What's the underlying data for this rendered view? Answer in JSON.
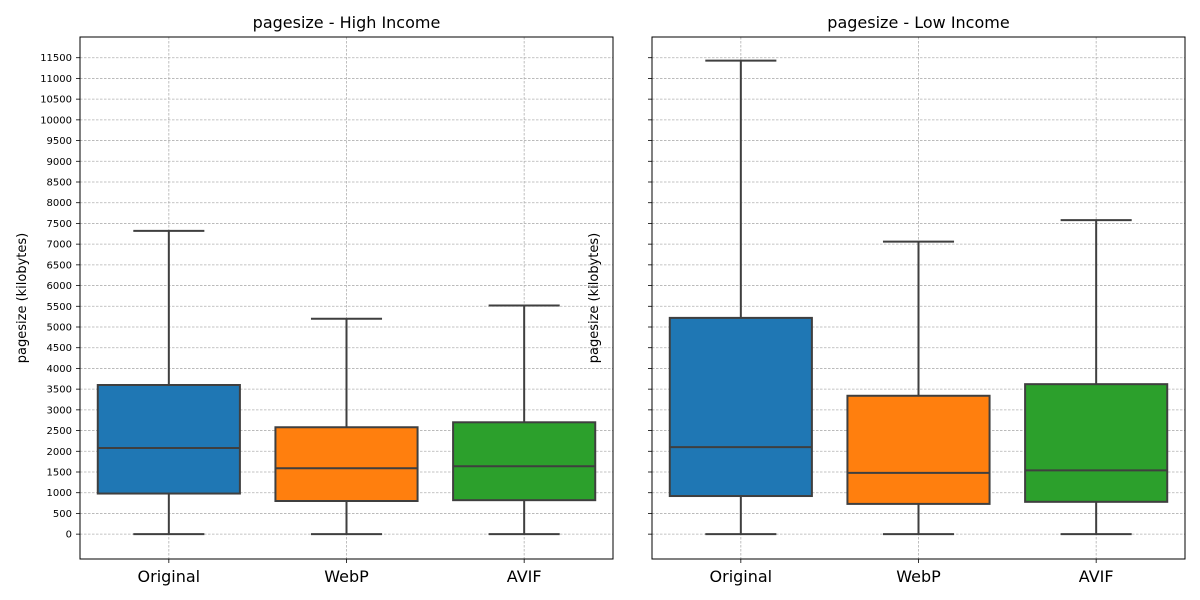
{
  "chart_data": [
    {
      "type": "box",
      "title": "pagesize - High Income",
      "ylabel": "pagesize (kilobytes)",
      "xlabel": "",
      "categories": [
        "Original",
        "WebP",
        "AVIF"
      ],
      "ylim": [
        -600,
        12000
      ],
      "y_ticks": [
        "0",
        "500",
        "1000",
        "1500",
        "2000",
        "2500",
        "3000",
        "3500",
        "4000",
        "4500",
        "5000",
        "5500",
        "6000",
        "6500",
        "7000",
        "7500",
        "8000",
        "8500",
        "9000",
        "9500",
        "10000",
        "10500",
        "11000",
        "11500"
      ],
      "y_tick_values": [
        0,
        500,
        1000,
        1500,
        2000,
        2500,
        3000,
        3500,
        4000,
        4500,
        5000,
        5500,
        6000,
        6500,
        7000,
        7500,
        8000,
        8500,
        9000,
        9500,
        10000,
        10500,
        11000,
        11500
      ],
      "show_ytick_labels": true,
      "grid": true,
      "boxes": [
        {
          "category": "Original",
          "whisker_low": 0,
          "q1": 980,
          "median": 2080,
          "q3": 3600,
          "whisker_high": 7320,
          "color": "#1f77b4"
        },
        {
          "category": "WebP",
          "whisker_low": 0,
          "q1": 800,
          "median": 1590,
          "q3": 2580,
          "whisker_high": 5200,
          "color": "#ff7f0e"
        },
        {
          "category": "AVIF",
          "whisker_low": 0,
          "q1": 820,
          "median": 1640,
          "q3": 2700,
          "whisker_high": 5520,
          "color": "#2ca02c"
        }
      ]
    },
    {
      "type": "box",
      "title": "pagesize - Low Income",
      "ylabel": "pagesize (kilobytes)",
      "xlabel": "",
      "categories": [
        "Original",
        "WebP",
        "AVIF"
      ],
      "ylim": [
        -600,
        12000
      ],
      "y_ticks": [
        "0",
        "500",
        "1000",
        "1500",
        "2000",
        "2500",
        "3000",
        "3500",
        "4000",
        "4500",
        "5000",
        "5500",
        "6000",
        "6500",
        "7000",
        "7500",
        "8000",
        "8500",
        "9000",
        "9500",
        "10000",
        "10500",
        "11000",
        "11500"
      ],
      "y_tick_values": [
        0,
        500,
        1000,
        1500,
        2000,
        2500,
        3000,
        3500,
        4000,
        4500,
        5000,
        5500,
        6000,
        6500,
        7000,
        7500,
        8000,
        8500,
        9000,
        9500,
        10000,
        10500,
        11000,
        11500
      ],
      "show_ytick_labels": false,
      "grid": true,
      "boxes": [
        {
          "category": "Original",
          "whisker_low": 0,
          "q1": 920,
          "median": 2100,
          "q3": 5220,
          "whisker_high": 11430,
          "color": "#1f77b4"
        },
        {
          "category": "WebP",
          "whisker_low": 0,
          "q1": 730,
          "median": 1480,
          "q3": 3340,
          "whisker_high": 7060,
          "color": "#ff7f0e"
        },
        {
          "category": "AVIF",
          "whisker_low": 0,
          "q1": 780,
          "median": 1540,
          "q3": 3620,
          "whisker_high": 7580,
          "color": "#2ca02c"
        }
      ]
    }
  ]
}
